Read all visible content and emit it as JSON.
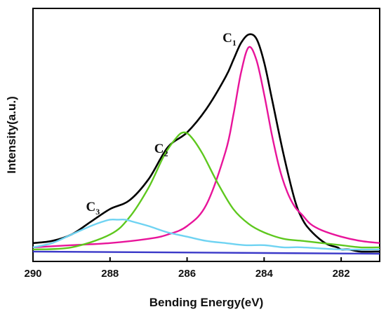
{
  "chart_data": {
    "type": "line",
    "xlabel": "Bending Energy(eV)",
    "ylabel": "Intensity(a.u.)",
    "xlim": [
      290,
      281
    ],
    "x_reversed": true,
    "ylim": [
      -0.04,
      1.05
    ],
    "x_ticks": [
      290,
      288,
      286,
      284,
      282
    ],
    "grid": false,
    "y_ticks_shown": false,
    "peak_labels": [
      {
        "main": "C",
        "sub": "1",
        "x": 284.35
      },
      {
        "main": "C",
        "sub": "2",
        "x": 286.05
      },
      {
        "main": "C",
        "sub": "3",
        "x": 287.75
      }
    ],
    "series": [
      {
        "color": "#000000",
        "x": [
          290.0,
          289.5,
          289.0,
          288.5,
          288.0,
          287.5,
          287.0,
          286.5,
          286.0,
          285.5,
          285.0,
          284.8,
          284.6,
          284.4,
          284.2,
          284.0,
          283.8,
          283.5,
          283.2,
          283.0,
          282.8,
          282.5,
          282.3,
          282.1,
          282.0,
          281.8,
          281.5,
          281.0
        ],
        "y": [
          0.02,
          0.03,
          0.06,
          0.12,
          0.18,
          0.22,
          0.32,
          0.47,
          0.54,
          0.65,
          0.8,
          0.88,
          0.96,
          1.0,
          0.98,
          0.87,
          0.7,
          0.44,
          0.22,
          0.13,
          0.08,
          0.03,
          0.01,
          0.0,
          -0.01,
          -0.01,
          -0.02,
          -0.02
        ]
      },
      {
        "color": "#e8149a",
        "x": [
          290.0,
          289.0,
          288.0,
          287.0,
          286.5,
          286.0,
          285.5,
          285.0,
          284.8,
          284.6,
          284.4,
          284.2,
          284.0,
          283.8,
          283.6,
          283.4,
          283.2,
          283.0,
          282.8,
          282.5,
          282.0,
          281.5,
          281.0
        ],
        "y": [
          0.0,
          0.01,
          0.02,
          0.04,
          0.06,
          0.1,
          0.2,
          0.45,
          0.62,
          0.82,
          0.94,
          0.88,
          0.72,
          0.53,
          0.37,
          0.26,
          0.19,
          0.15,
          0.11,
          0.08,
          0.05,
          0.03,
          0.02
        ]
      },
      {
        "color": "#5ec81e",
        "x": [
          290.0,
          289.0,
          288.0,
          287.5,
          287.0,
          286.6,
          286.3,
          286.1,
          285.9,
          285.6,
          285.2,
          284.8,
          284.4,
          284.0,
          283.5,
          283.0,
          282.5,
          282.0,
          281.5,
          281.0
        ],
        "y": [
          -0.01,
          0.0,
          0.06,
          0.14,
          0.28,
          0.43,
          0.51,
          0.54,
          0.52,
          0.44,
          0.3,
          0.18,
          0.11,
          0.07,
          0.04,
          0.03,
          0.02,
          0.01,
          0.0,
          0.0
        ]
      },
      {
        "color": "#6fd3f2",
        "x": [
          290.0,
          289.5,
          289.0,
          288.5,
          288.2,
          288.0,
          287.8,
          287.6,
          287.4,
          287.0,
          286.5,
          286.0,
          285.5,
          285.0,
          284.5,
          284.0,
          283.5,
          283.0,
          282.0,
          281.0
        ],
        "y": [
          0.0,
          0.02,
          0.06,
          0.1,
          0.12,
          0.13,
          0.13,
          0.13,
          0.12,
          0.1,
          0.07,
          0.05,
          0.03,
          0.02,
          0.01,
          0.01,
          0.0,
          0.0,
          -0.01,
          -0.01
        ]
      },
      {
        "color": "#3a38c8",
        "x": [
          290.0,
          281.0
        ],
        "y": [
          -0.02,
          -0.03
        ]
      }
    ]
  }
}
